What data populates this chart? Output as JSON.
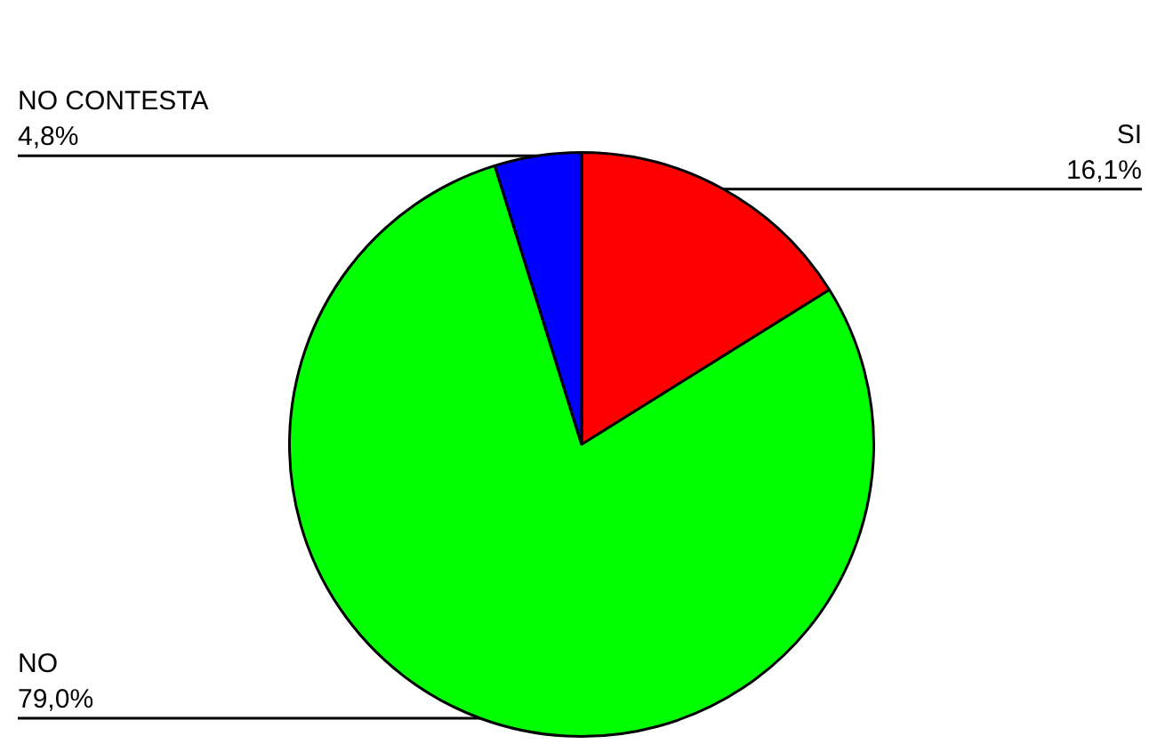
{
  "chart_data": {
    "type": "pie",
    "categories": [
      "SI",
      "NO",
      "NO CONTESTA"
    ],
    "values": [
      16.1,
      79.0,
      4.8
    ],
    "colors": [
      "#ff0000",
      "#00ff00",
      "#0000ff"
    ],
    "value_labels": [
      "16,1%",
      "79,0%",
      "4,8%"
    ],
    "legend": false
  }
}
